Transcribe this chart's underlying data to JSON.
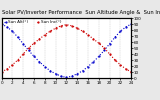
{
  "title": "Solar PV/Inverter Performance  Sun Altitude Angle &  Sun Incidence Angle on PV Panels",
  "legend_labels": [
    "Sun Alt(°)",
    "Sun Inc(°)"
  ],
  "legend_colors": [
    "#0000ff",
    "#ff0000"
  ],
  "x_values": [
    0,
    1,
    2,
    3,
    4,
    5,
    6,
    7,
    8,
    9,
    10,
    11,
    12,
    13,
    14,
    15,
    16,
    17,
    18,
    19,
    20,
    21,
    22,
    23,
    24
  ],
  "sun_altitude": [
    90,
    85,
    78,
    68,
    57,
    46,
    36,
    27,
    19,
    12,
    7,
    3,
    1,
    3,
    7,
    12,
    19,
    27,
    36,
    46,
    57,
    68,
    78,
    85,
    90
  ],
  "sun_incidence": [
    10,
    15,
    22,
    30,
    40,
    50,
    58,
    65,
    72,
    78,
    83,
    87,
    89,
    87,
    83,
    78,
    72,
    65,
    58,
    50,
    40,
    30,
    22,
    15,
    10
  ],
  "ylim": [
    0,
    100
  ],
  "yticks_right": [
    0,
    10,
    20,
    30,
    40,
    50,
    60,
    70,
    80,
    90,
    100
  ],
  "xtick_labels": [
    "0",
    "2",
    "4",
    "6",
    "8",
    "10",
    "12",
    "14",
    "16",
    "18",
    "20",
    "22",
    "24"
  ],
  "xtick_positions": [
    0,
    2,
    4,
    6,
    8,
    10,
    12,
    14,
    16,
    18,
    20,
    22,
    24
  ],
  "bg_color": "#e8e8e8",
  "plot_bg_color": "#ffffff",
  "grid_color": "#aaaaaa",
  "line_color_blue": "#0000cc",
  "line_color_red": "#cc0000",
  "title_fontsize": 3.8,
  "tick_fontsize": 3.0,
  "legend_fontsize": 3.0
}
